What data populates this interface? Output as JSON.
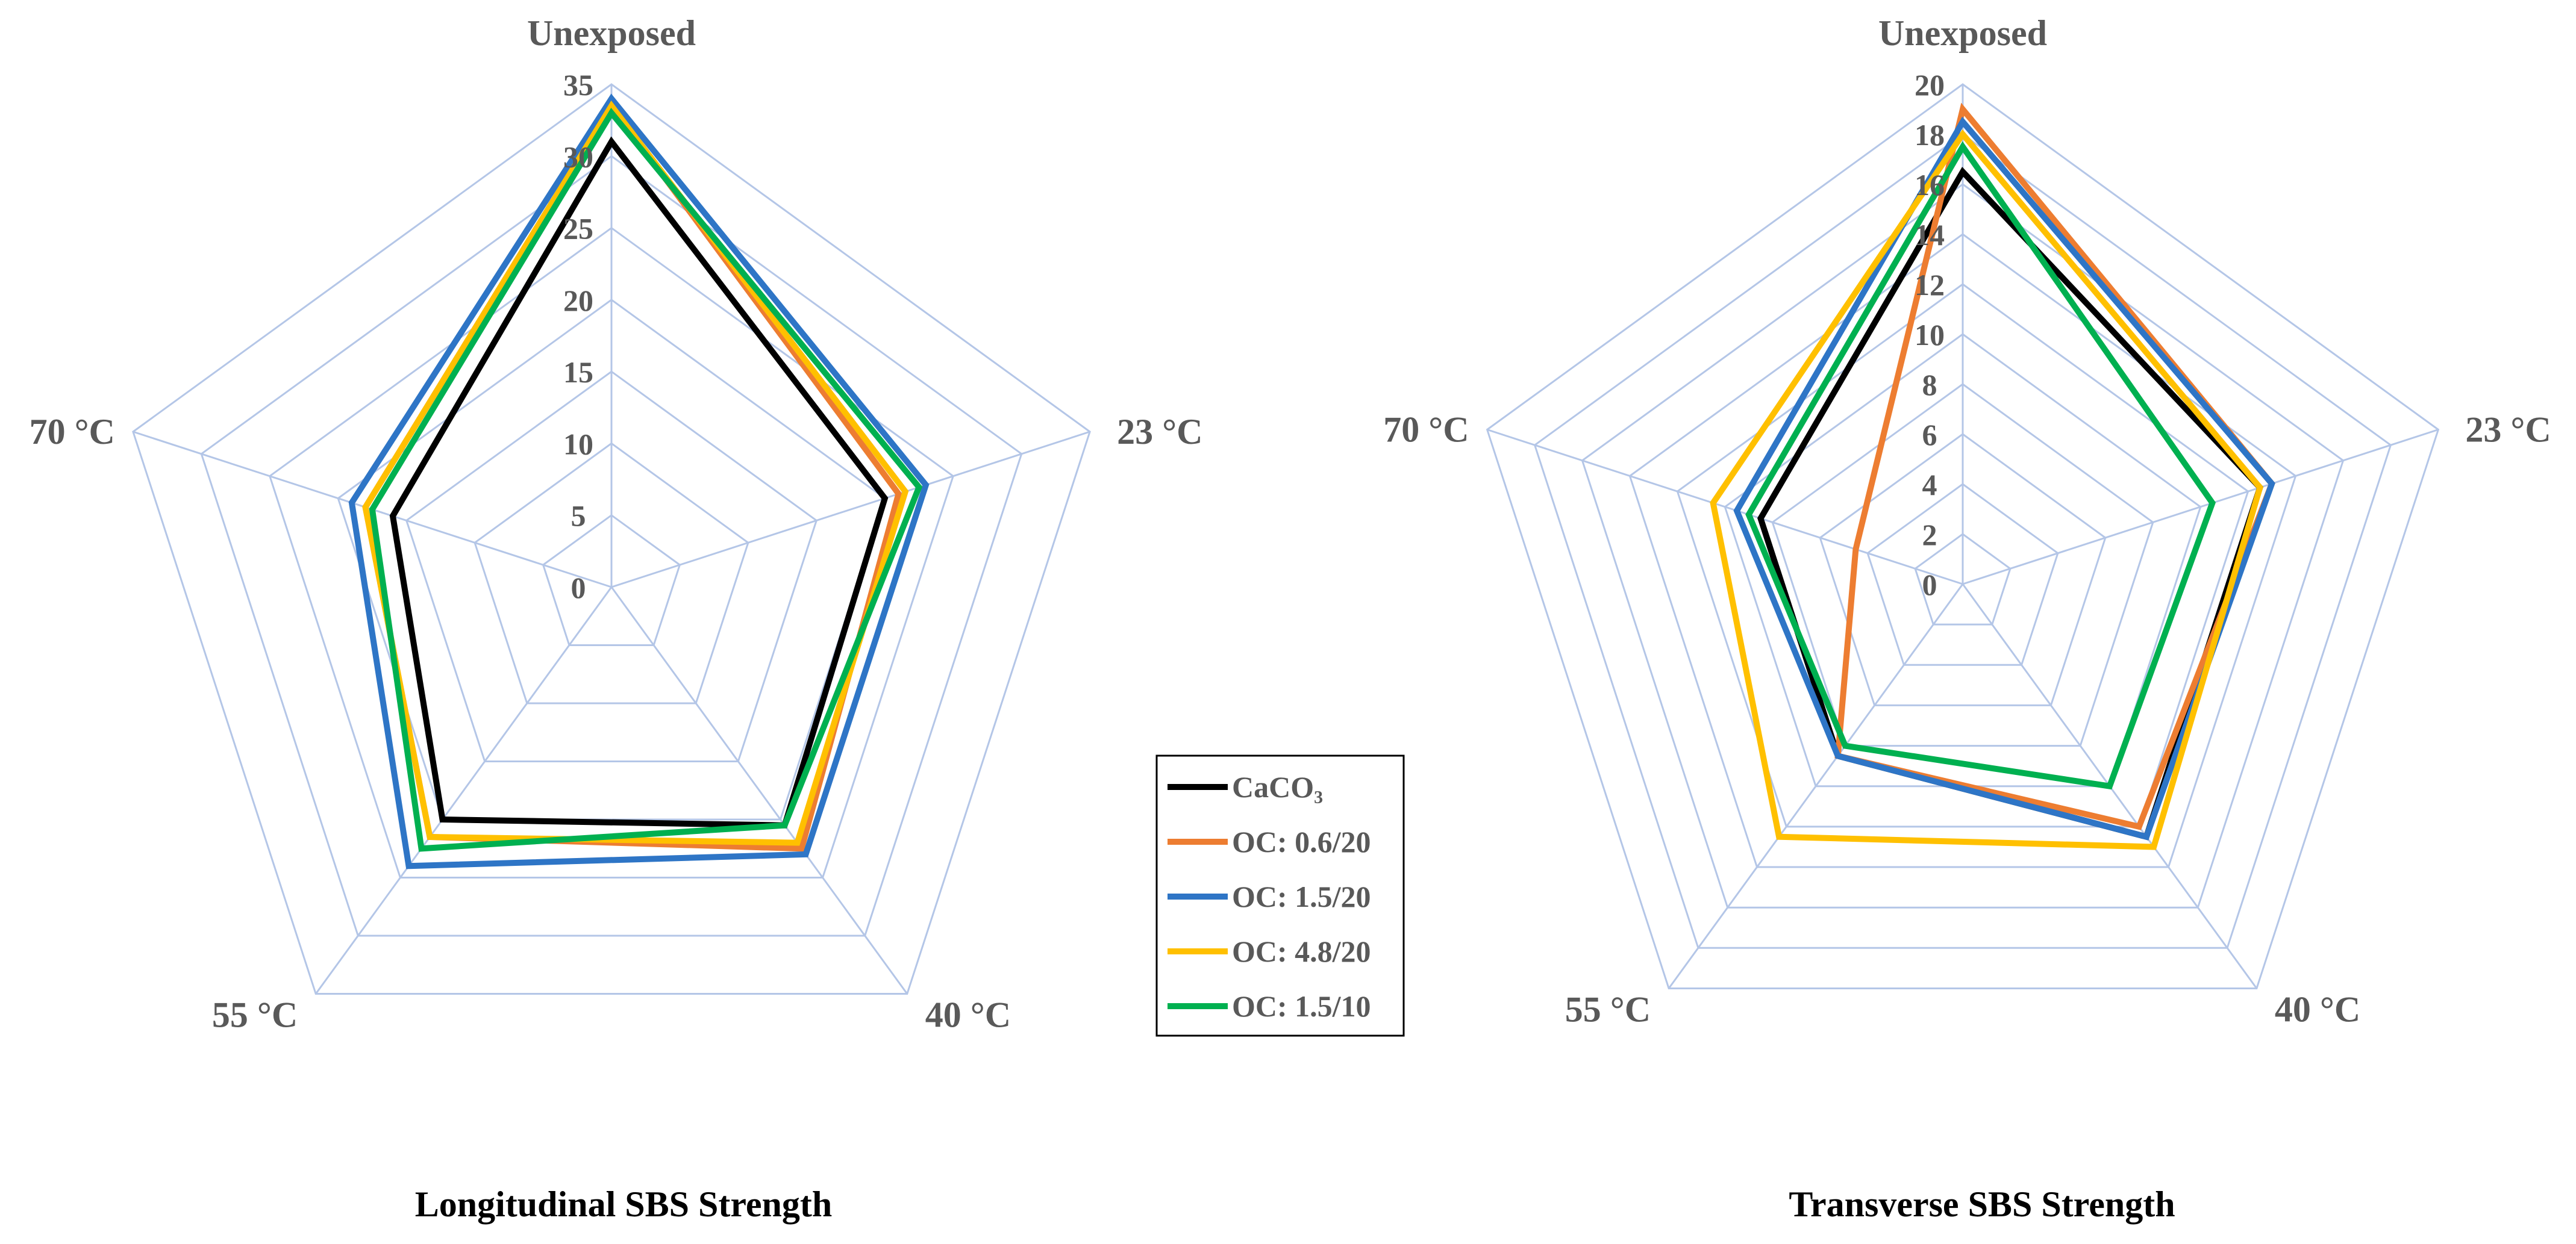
{
  "chart_data": [
    {
      "type": "radar",
      "title": "Longitudinal SBS Strength",
      "axes": [
        "Unexposed",
        "23 °C",
        "40 °C",
        "55 °C",
        "70 °C"
      ],
      "rmin": 0,
      "rmax": 35,
      "ticks": [
        0,
        5,
        10,
        15,
        20,
        25,
        30,
        35
      ],
      "grid_rings": [
        5,
        10,
        15,
        20,
        25,
        30,
        35
      ],
      "series": [
        {
          "name": "CaCO₃",
          "color": "#000000",
          "values": [
            31.0,
            20.0,
            20.5,
            20.0,
            16.0
          ]
        },
        {
          "name": "OC: 0.6/20",
          "color": "#ed7d31",
          "values": [
            33.5,
            21.0,
            22.5,
            21.5,
            18.0
          ]
        },
        {
          "name": "OC: 1.5/20",
          "color": "#2e75c6",
          "values": [
            34.0,
            23.0,
            23.0,
            24.0,
            19.0
          ]
        },
        {
          "name": "OC: 4.8/20",
          "color": "#ffc000",
          "values": [
            33.5,
            21.5,
            22.0,
            21.5,
            18.0
          ]
        },
        {
          "name": "OC: 1.5/10",
          "color": "#00b050",
          "values": [
            33.0,
            22.5,
            20.5,
            22.5,
            17.5
          ]
        }
      ]
    },
    {
      "type": "radar",
      "title": "Transverse SBS Strength",
      "axes": [
        "Unexposed",
        "23 °C",
        "40 °C",
        "55 °C",
        "70 °C"
      ],
      "rmin": 0,
      "rmax": 20,
      "ticks": [
        0,
        2,
        4,
        6,
        8,
        10,
        12,
        14,
        16,
        18,
        20
      ],
      "grid_rings": [
        2,
        4,
        6,
        8,
        10,
        12,
        14,
        16,
        18,
        20
      ],
      "series": [
        {
          "name": "CaCO₃",
          "color": "#000000",
          "values": [
            16.5,
            12.5,
            12.5,
            8.5,
            8.5
          ]
        },
        {
          "name": "OC: 0.6/20",
          "color": "#ed7d31",
          "values": [
            19.0,
            13.0,
            12.0,
            8.5,
            4.5
          ]
        },
        {
          "name": "OC: 1.5/20",
          "color": "#2e75c6",
          "values": [
            18.5,
            13.0,
            12.5,
            8.5,
            9.5
          ]
        },
        {
          "name": "OC: 4.8/20",
          "color": "#ffc000",
          "values": [
            18.0,
            12.5,
            13.0,
            12.5,
            10.5
          ]
        },
        {
          "name": "OC: 1.5/10",
          "color": "#00b050",
          "values": [
            17.5,
            10.5,
            10.0,
            8.0,
            9.0
          ]
        }
      ]
    }
  ],
  "legend": {
    "entries": [
      {
        "label": "CaCO₃",
        "color": "#000000"
      },
      {
        "label": "OC: 0.6/20",
        "color": "#ed7d31"
      },
      {
        "label": "OC: 1.5/20",
        "color": "#2e75c6"
      },
      {
        "label": "OC: 4.8/20",
        "color": "#ffc000"
      },
      {
        "label": "OC: 1.5/10",
        "color": "#00b050"
      }
    ]
  }
}
